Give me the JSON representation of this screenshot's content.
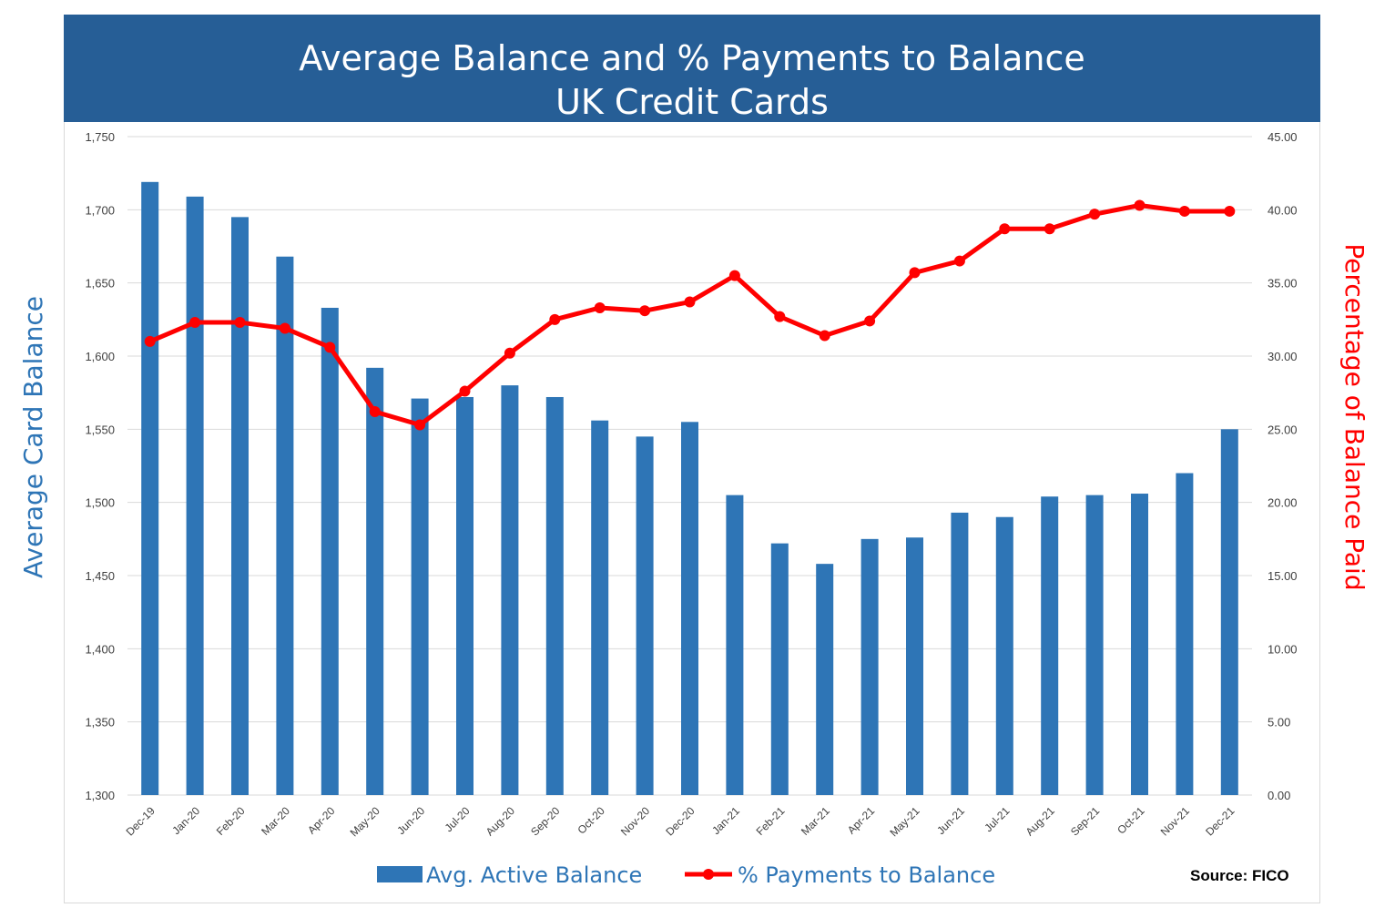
{
  "chart_data": {
    "type": "bar+line",
    "title": "Average Balance and % Payments to Balance",
    "subtitle": "UK Credit Cards",
    "categories": [
      "Dec-19",
      "Jan-20",
      "Feb-20",
      "Mar-20",
      "Apr-20",
      "May-20",
      "Jun-20",
      "Jul-20",
      "Aug-20",
      "Sep-20",
      "Oct-20",
      "Nov-20",
      "Dec-20",
      "Jan-21",
      "Feb-21",
      "Mar-21",
      "Apr-21",
      "May-21",
      "Jun-21",
      "Jul-21",
      "Aug-21",
      "Sep-21",
      "Oct-21",
      "Nov-21",
      "Dec-21"
    ],
    "series": [
      {
        "name": "Avg. Active Balance",
        "type": "bar",
        "axis": "left",
        "color": "#2e75b6",
        "values": [
          1719,
          1709,
          1695,
          1668,
          1633,
          1592,
          1571,
          1572,
          1580,
          1572,
          1556,
          1545,
          1555,
          1505,
          1472,
          1458,
          1475,
          1476,
          1493,
          1490,
          1504,
          1505,
          1506,
          1520,
          1550
        ]
      },
      {
        "name": "% Payments to Balance",
        "type": "line",
        "axis": "right",
        "color": "#ff0000",
        "values": [
          31.0,
          32.3,
          32.3,
          31.9,
          30.6,
          26.2,
          25.3,
          27.6,
          30.2,
          32.5,
          33.3,
          33.1,
          33.7,
          35.5,
          32.7,
          31.4,
          32.4,
          35.7,
          36.5,
          38.7,
          38.7,
          39.7,
          40.3,
          39.9,
          39.9
        ]
      }
    ],
    "y_left": {
      "label": "Average Card Balance",
      "lim": [
        1300,
        1750
      ],
      "ticks": [
        "1,300",
        "1,350",
        "1,400",
        "1,450",
        "1,500",
        "1,550",
        "1,600",
        "1,650",
        "1,700",
        "1,750"
      ]
    },
    "y_right": {
      "label": "Percentage of Balance Paid",
      "lim": [
        0,
        45
      ],
      "ticks": [
        "0.00",
        "5.00",
        "10.00",
        "15.00",
        "20.00",
        "25.00",
        "30.00",
        "35.00",
        "40.00",
        "45.00"
      ]
    },
    "grid": true,
    "legend": "bottom",
    "source": "Source: FICO"
  }
}
